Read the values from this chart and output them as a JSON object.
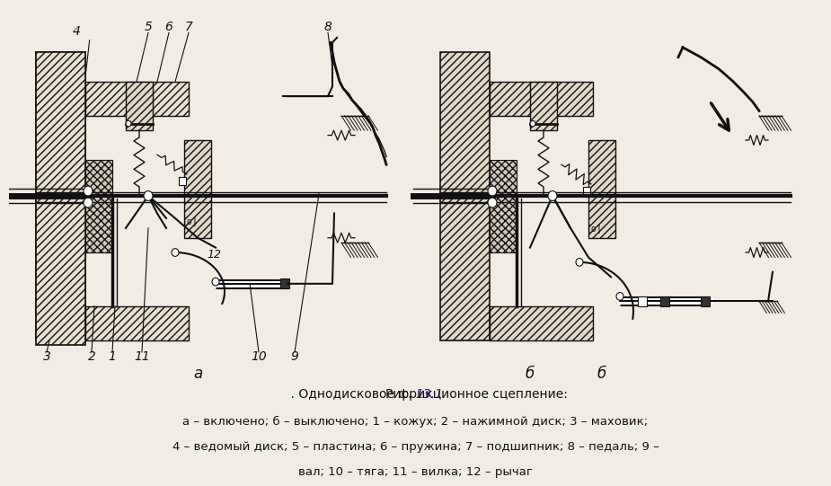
{
  "background_color": "#f2ede4",
  "fig_width": 9.05,
  "fig_height": 5.17,
  "caption_rис": "Рис. ",
  "caption_num": "13.1",
  "caption_rest": ". Однодисковое фрикционное сцепление:",
  "caption_line2": "а – включено; б – выключено; 1 – кожух; 2 – нажимной диск; 3 – маховик;",
  "caption_line3": "4 – ведомый диск; 5 – пластина; 6 – пружина; 7 – подшипник; 8 – педаль; 9 –",
  "caption_line4": "вал; 10 – тяга; 11 – вилка; 12 – рычаг",
  "text_color": "#111111",
  "line_color": "#111111",
  "num_color": "#1a1aaa"
}
